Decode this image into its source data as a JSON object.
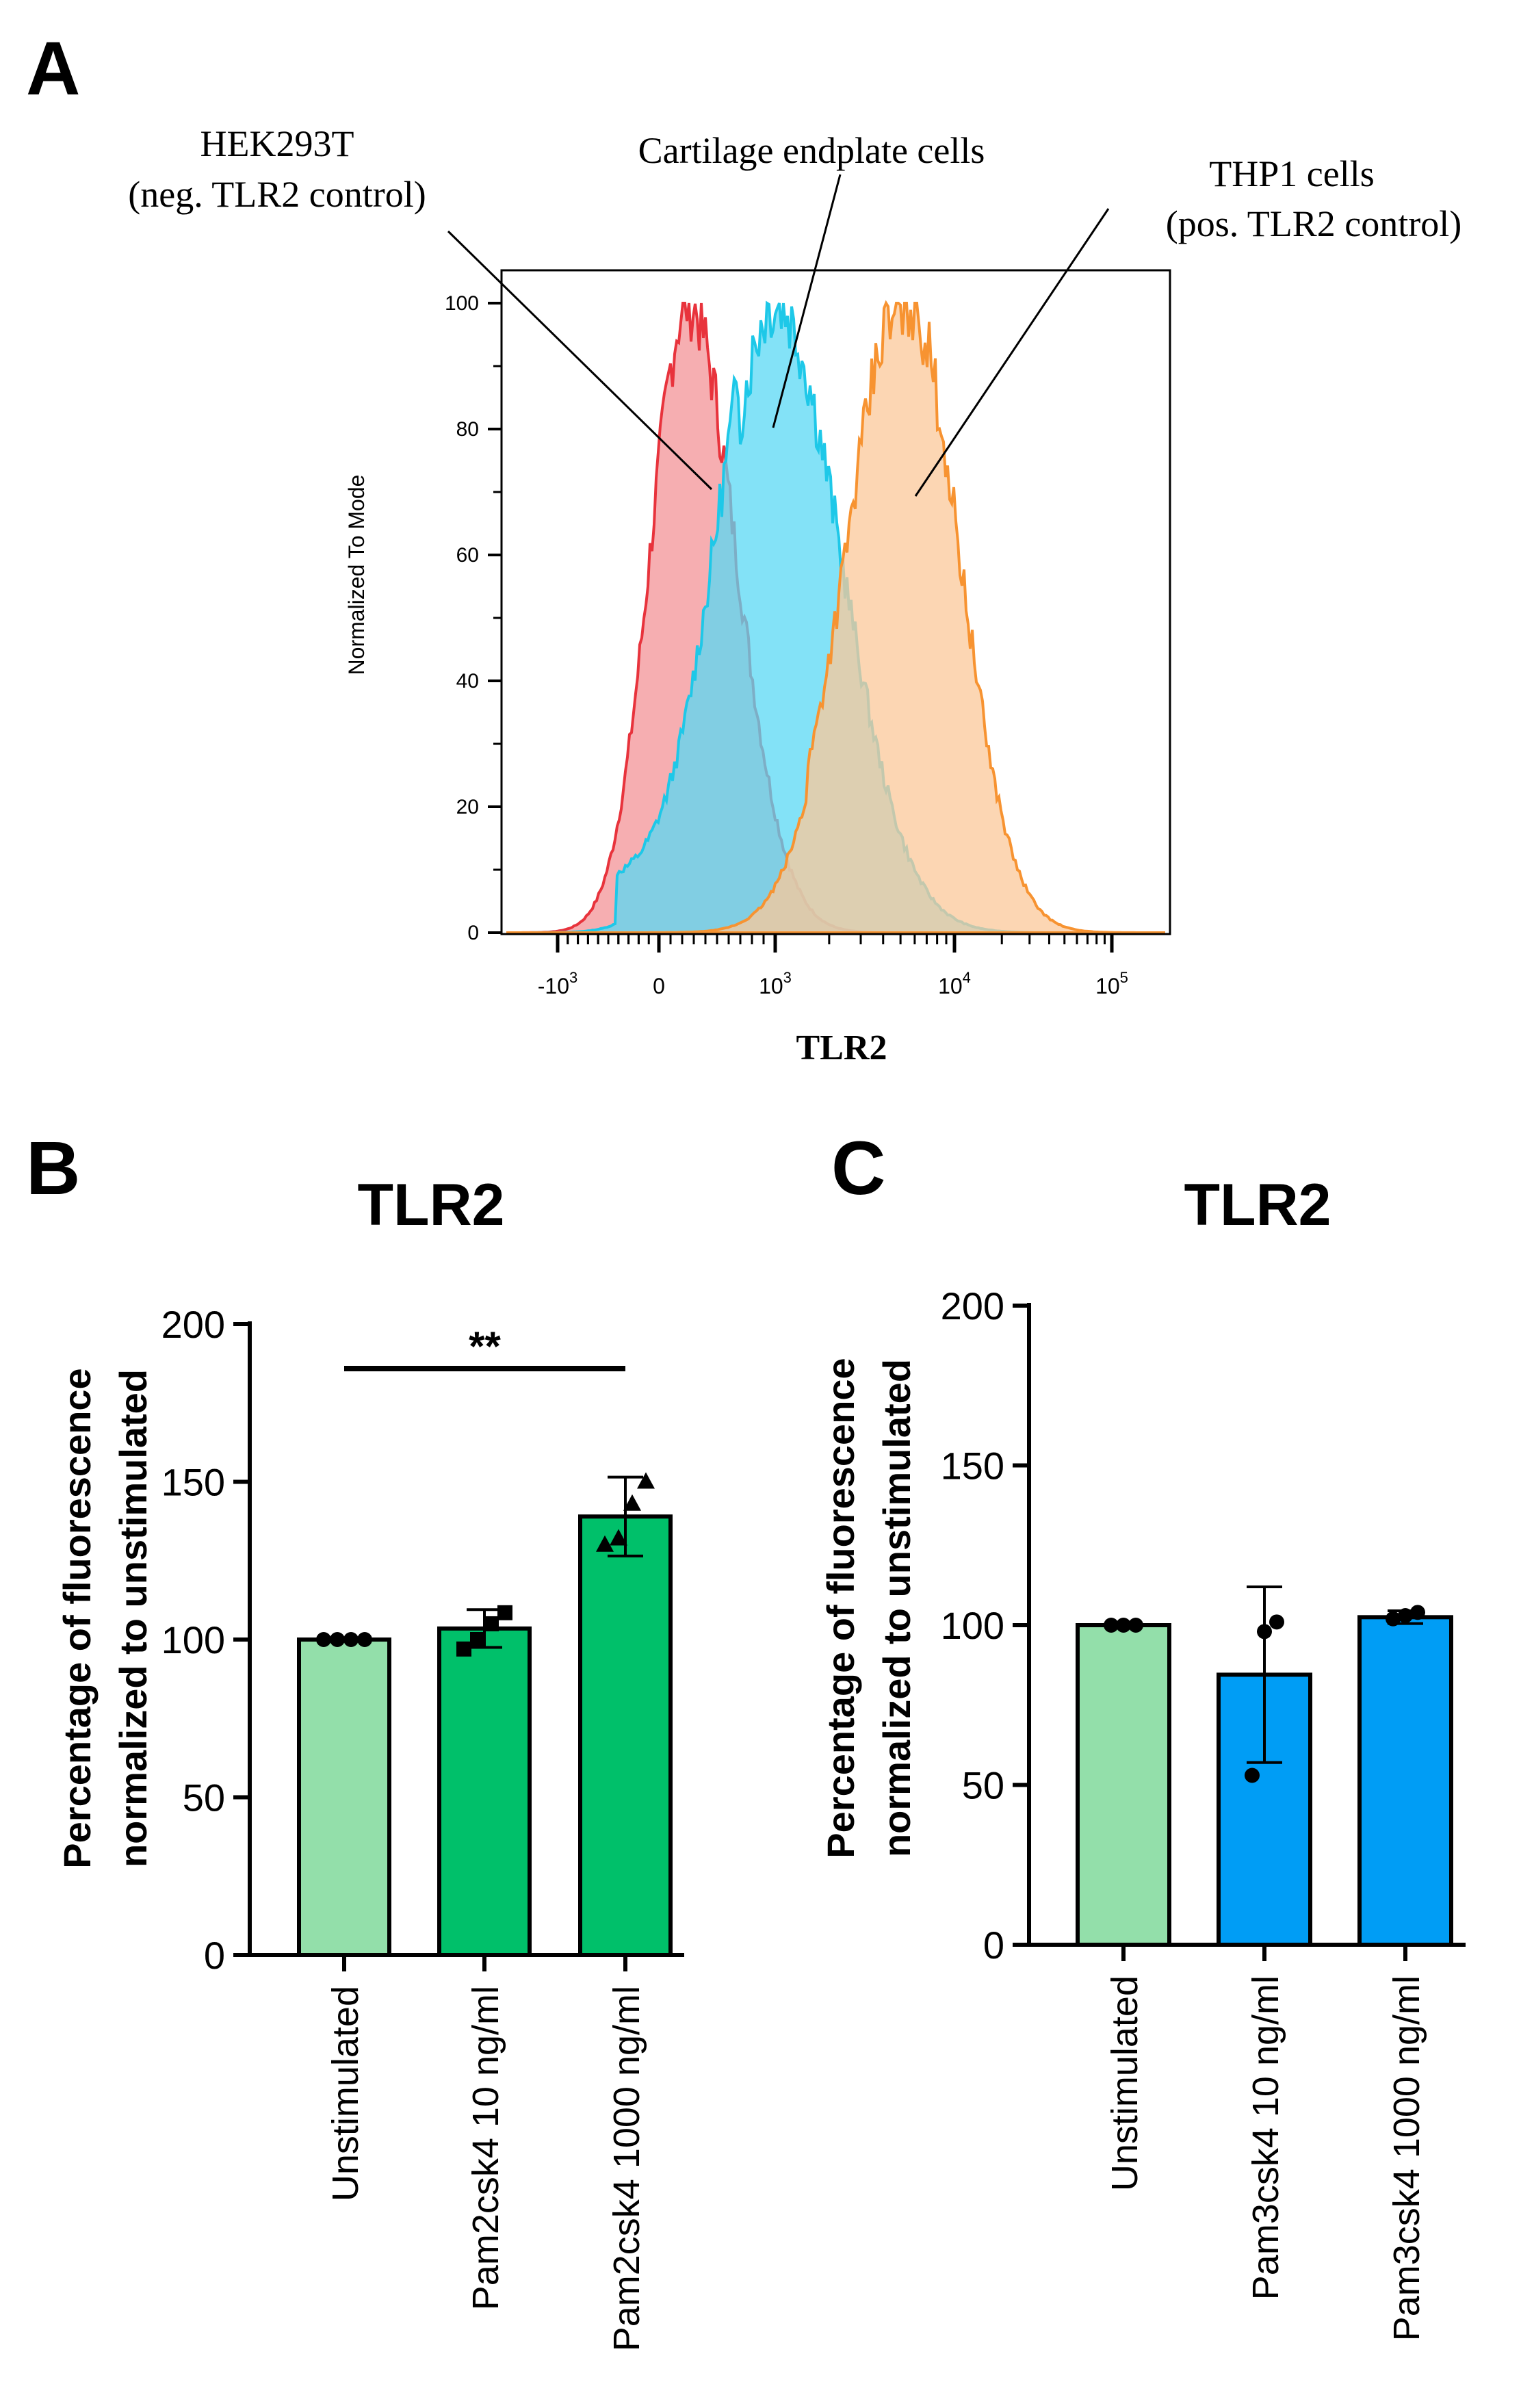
{
  "panels": {
    "a": {
      "letter": "A"
    },
    "b": {
      "letter": "B"
    },
    "c": {
      "letter": "C"
    }
  },
  "colors": {
    "hek_line": "#e8333c",
    "hek_fill": "#f4a0a3",
    "cep_line": "#1ec8e8",
    "cep_fill": "#5ad8f4",
    "thp_line": "#f79331",
    "thp_fill": "#fbc89a",
    "unstim": "#93dfaa",
    "pam2": "#00c06a",
    "pam3": "#009df5"
  },
  "chart_data": [
    {
      "id": "A",
      "type": "area",
      "title": "",
      "xlabel": "TLR2",
      "ylabel": "Normalized To Mode",
      "ylim": [
        0,
        100
      ],
      "yticks": [
        "0",
        "20",
        "40",
        "60",
        "80",
        "100"
      ],
      "xticks": [
        {
          "base": "-10",
          "exp": "3",
          "pos": -1000
        },
        {
          "base": "0",
          "exp": "",
          "pos": 0
        },
        {
          "base": "10",
          "exp": "3",
          "pos": 1000
        },
        {
          "base": "10",
          "exp": "4",
          "pos": 10000
        },
        {
          "base": "10",
          "exp": "5",
          "pos": 100000
        }
      ],
      "series": [
        {
          "name": "HEK293T",
          "label_line1": "HEK293T",
          "label_line2": "(neg. TLR2 control)",
          "peak_x": 250,
          "peak_y": 100
        },
        {
          "name": "Cartilage endplate cells",
          "label_line1": "Cartilage endplate cells",
          "label_line2": "",
          "peak_x": 1000,
          "peak_y": 100
        },
        {
          "name": "THP1 cells",
          "label_line1": "THP1 cells",
          "label_line2": "(pos. TLR2 control)",
          "peak_x": 5500,
          "peak_y": 100
        }
      ]
    },
    {
      "id": "B",
      "type": "bar",
      "title": "TLR2",
      "ylabel_line1": "Percentage of fluorescence",
      "ylabel_line2": "normalized to unstimulated",
      "ylim": [
        0,
        200
      ],
      "yticks": [
        "0",
        "50",
        "100",
        "150",
        "200"
      ],
      "categories": [
        "Unstimulated",
        "Pam2csk4 10 ng/ml",
        "Pam2csk4 1000 ng/ml"
      ],
      "values": [
        100,
        103.5,
        139
      ],
      "errors": [
        0,
        6,
        12.5
      ],
      "points": [
        [
          100,
          100,
          100,
          100
        ],
        [
          97,
          100,
          105,
          108.5
        ],
        [
          130,
          132,
          143,
          150
        ]
      ],
      "markers": [
        "circle",
        "square",
        "triangle"
      ],
      "significance": {
        "from": 0,
        "to": 2,
        "label": "**"
      }
    },
    {
      "id": "C",
      "type": "bar",
      "title": "TLR2",
      "ylabel_line1": "Percentage of fluorescence",
      "ylabel_line2": "normalized to unstimulated",
      "ylim": [
        0,
        200
      ],
      "yticks": [
        "0",
        "50",
        "100",
        "150",
        "200"
      ],
      "categories": [
        "Unstimulated",
        "Pam3csk4 10 ng/ml",
        "Pam3csk4 1000 ng/ml"
      ],
      "values": [
        100,
        84.5,
        102.5
      ],
      "errors": [
        0,
        27.5,
        2
      ],
      "points": [
        [
          100,
          100,
          100
        ],
        [
          53,
          98,
          101
        ],
        [
          102,
          103,
          104
        ]
      ],
      "markers": [
        "circle",
        "circle",
        "circle"
      ]
    }
  ]
}
